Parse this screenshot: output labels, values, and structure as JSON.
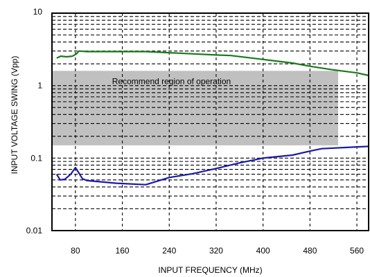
{
  "chart_data": {
    "type": "line",
    "title": "",
    "xlabel": "INPUT FREQUENCY (MHz)",
    "ylabel": "INPUT VOLTAGE SWING (Vpp)",
    "xlim": [
      40,
      580
    ],
    "ylim": [
      0.01,
      10
    ],
    "yscale": "log",
    "x_ticks": [
      80,
      160,
      240,
      320,
      400,
      480,
      560
    ],
    "x_tick_labels": [
      "80",
      "160",
      "240",
      "320",
      "400",
      "480",
      "560"
    ],
    "y_ticks": [
      0.01,
      0.1,
      1,
      10
    ],
    "y_tick_labels": [
      "0.01",
      "0.1",
      "1",
      "10"
    ],
    "grid": true,
    "series": [
      {
        "color": "#1a7a1a",
        "points": [
          [
            48,
            2.4
          ],
          [
            55,
            2.55
          ],
          [
            65,
            2.5
          ],
          [
            75,
            2.55
          ],
          [
            82,
            2.75
          ],
          [
            86,
            3.0
          ],
          [
            100,
            2.95
          ],
          [
            160,
            2.95
          ],
          [
            200,
            2.95
          ],
          [
            240,
            2.85
          ],
          [
            320,
            2.65
          ],
          [
            345,
            2.6
          ],
          [
            400,
            2.3
          ],
          [
            450,
            2.05
          ],
          [
            480,
            1.85
          ],
          [
            520,
            1.65
          ],
          [
            560,
            1.5
          ],
          [
            580,
            1.38
          ]
        ]
      },
      {
        "color": "#1a1aa8",
        "points": [
          [
            48,
            0.06
          ],
          [
            54,
            0.05
          ],
          [
            62,
            0.051
          ],
          [
            72,
            0.06
          ],
          [
            80,
            0.074
          ],
          [
            85,
            0.064
          ],
          [
            92,
            0.052
          ],
          [
            100,
            0.049
          ],
          [
            150,
            0.045
          ],
          [
            200,
            0.043
          ],
          [
            240,
            0.054
          ],
          [
            280,
            0.061
          ],
          [
            320,
            0.072
          ],
          [
            360,
            0.086
          ],
          [
            400,
            0.1
          ],
          [
            450,
            0.11
          ],
          [
            480,
            0.125
          ],
          [
            500,
            0.135
          ],
          [
            540,
            0.14
          ],
          [
            580,
            0.145
          ]
        ]
      }
    ],
    "shaded_region": {
      "x": [
        40,
        528
      ],
      "y": [
        0.15,
        1.6
      ],
      "color": "#c0c0c0",
      "label": "Recommend region of operation"
    }
  }
}
